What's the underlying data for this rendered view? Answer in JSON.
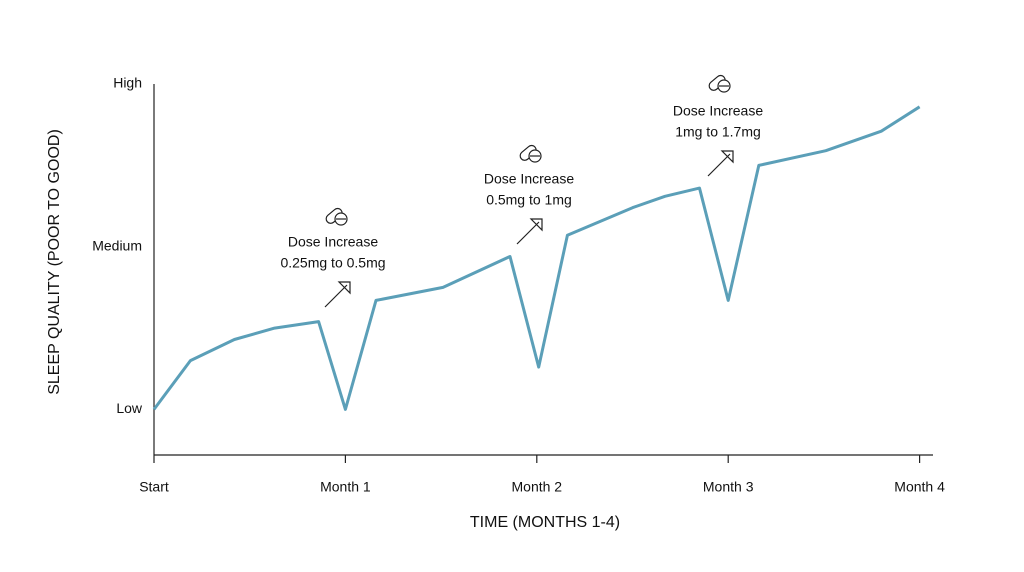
{
  "chart_data": {
    "type": "line",
    "x_label": "TIME (MONTHS 1-4)",
    "y_label": "SLEEP QUALITY (POOR TO GOOD)",
    "xlim": [
      0,
      4.07
    ],
    "xticks": [
      {
        "value": 0,
        "label": "Start"
      },
      {
        "value": 1,
        "label": "Month 1"
      },
      {
        "value": 2,
        "label": "Month 2"
      },
      {
        "value": 3,
        "label": "Month 3"
      },
      {
        "value": 4,
        "label": "Month 4"
      }
    ],
    "ylim": [
      -1.4,
      10
    ],
    "yticks": [
      {
        "value": 0,
        "label": "Low"
      },
      {
        "value": 5,
        "label": "Medium"
      },
      {
        "value": 10,
        "label": "High"
      }
    ],
    "color": "#5b9fb8",
    "x": [
      0,
      0.19,
      0.42,
      0.63,
      0.86,
      1.0,
      1.16,
      1.51,
      1.86,
      2.01,
      2.16,
      2.5,
      2.67,
      2.85,
      3.0,
      3.16,
      3.51,
      3.8,
      4.0
    ],
    "values": [
      0,
      1.5,
      2.15,
      2.5,
      2.7,
      0,
      3.35,
      3.75,
      4.7,
      1.3,
      5.35,
      6.2,
      6.55,
      6.8,
      3.35,
      7.5,
      7.95,
      8.55,
      9.3
    ],
    "annotations": [
      {
        "lines": [
          "Dose Increase",
          "0.25mg to 0.5mg"
        ]
      },
      {
        "lines": [
          "Dose Increase",
          "0.5mg to 1mg"
        ]
      },
      {
        "lines": [
          "Dose Increase",
          "1mg to 1.7mg"
        ]
      }
    ]
  }
}
